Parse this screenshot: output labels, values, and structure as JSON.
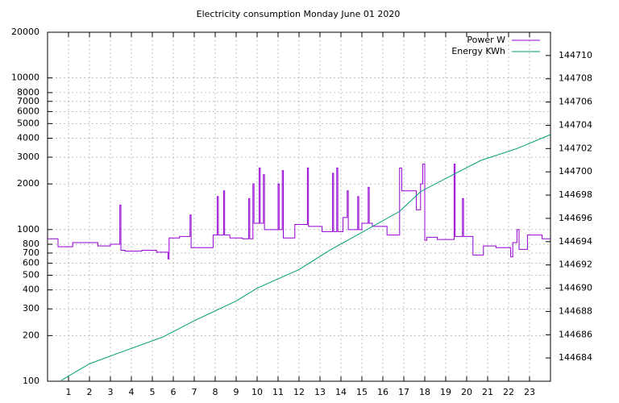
{
  "chart_data": {
    "type": "line",
    "title": "Electricity consumption Monday June 01 2020",
    "xlim": [
      0,
      24
    ],
    "xticks": [
      1,
      2,
      3,
      4,
      5,
      6,
      7,
      8,
      9,
      10,
      11,
      12,
      13,
      14,
      15,
      16,
      17,
      18,
      19,
      20,
      21,
      22,
      23
    ],
    "ylim": [
      100,
      20000
    ],
    "yticks": [
      100,
      200,
      300,
      400,
      500,
      600,
      700,
      800,
      1000,
      2000,
      3000,
      4000,
      5000,
      6000,
      7000,
      8000,
      10000,
      20000
    ],
    "log_y": true,
    "y2lim": [
      144682,
      144712
    ],
    "y2ticks": [
      144684,
      144686,
      144688,
      144690,
      144692,
      144694,
      144696,
      144698,
      144700,
      144702,
      144704,
      144706,
      144708,
      144710
    ],
    "grid": true,
    "legend": "top-right",
    "series": [
      {
        "name": "Power W",
        "color": "#9400d3",
        "x": [
          0,
          0.5,
          1.2,
          2.4,
          3.0,
          3.4,
          3.45,
          3.5,
          3.7,
          4.5,
          5.2,
          5.75,
          5.8,
          6.3,
          6.8,
          6.85,
          7.9,
          8.1,
          8.15,
          8.4,
          8.45,
          8.7,
          9.3,
          9.6,
          9.65,
          9.8,
          9.85,
          10.1,
          10.15,
          10.3,
          10.35,
          10.6,
          11.0,
          11.05,
          11.2,
          11.25,
          11.8,
          12.4,
          12.45,
          13.1,
          13.6,
          13.65,
          13.8,
          13.85,
          14.1,
          14.3,
          14.35,
          14.6,
          14.8,
          14.85,
          15.0,
          15.3,
          15.35,
          15.5,
          16.2,
          16.8,
          16.9,
          17.6,
          17.8,
          17.9,
          18.0,
          18.1,
          18.6,
          19.4,
          19.45,
          19.8,
          19.85,
          20.3,
          20.8,
          21.4,
          22.1,
          22.2,
          22.4,
          22.5,
          22.9,
          23.6,
          24
        ],
        "values": [
          870,
          770,
          820,
          780,
          800,
          800,
          1450,
          730,
          720,
          730,
          710,
          640,
          880,
          900,
          1250,
          760,
          920,
          1650,
          920,
          1800,
          920,
          880,
          870,
          1600,
          870,
          2000,
          1100,
          2550,
          1100,
          2300,
          1000,
          1000,
          2000,
          1000,
          2450,
          880,
          1080,
          2550,
          1050,
          970,
          2350,
          970,
          2550,
          970,
          1200,
          1800,
          1000,
          1000,
          1650,
          1000,
          1100,
          1900,
          1100,
          1050,
          920,
          2550,
          1800,
          1350,
          2000,
          2700,
          850,
          890,
          860,
          2700,
          900,
          1600,
          900,
          680,
          780,
          760,
          660,
          820,
          1000,
          740,
          920,
          870,
          870
        ]
      },
      {
        "name": "Energy KWh",
        "color": "#009e73",
        "axis": "y2",
        "x": [
          0.65,
          2,
          3.5,
          5.5,
          7,
          9,
          10,
          12,
          13.5,
          15,
          16.8,
          17.8,
          19.5,
          20.7,
          22.4,
          24
        ],
        "values": [
          144682.07,
          144683.5,
          144684.5,
          144685.8,
          144687.2,
          144688.9,
          144690.0,
          144691.6,
          144693.3,
          144694.8,
          144696.6,
          144698.3,
          144699.9,
          144701.0,
          144702.0,
          144703.2
        ]
      }
    ]
  }
}
